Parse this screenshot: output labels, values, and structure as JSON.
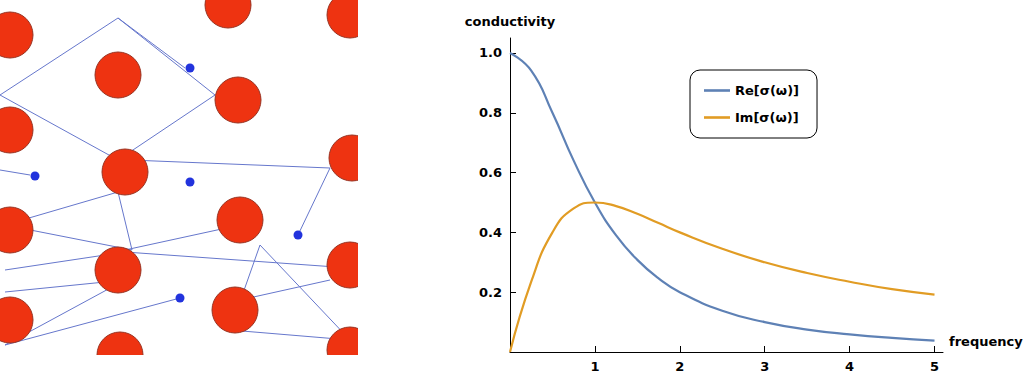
{
  "chart_data": {
    "type": "line",
    "xlabel": "frequency",
    "ylabel": "conductivity",
    "x": [
      0,
      0.25,
      0.5,
      0.75,
      1,
      1.25,
      1.5,
      1.75,
      2,
      2.5,
      3,
      3.5,
      4,
      4.5,
      5
    ],
    "series": [
      {
        "name": "Re[σ(ω)]",
        "color": "#5e81b5",
        "values": [
          1,
          0.941,
          0.8,
          0.64,
          0.5,
          0.39,
          0.308,
          0.246,
          0.2,
          0.138,
          0.1,
          0.075,
          0.059,
          0.047,
          0.038
        ]
      },
      {
        "name": "Im[σ(ω)]",
        "color": "#e19c24",
        "values": [
          0,
          0.235,
          0.4,
          0.48,
          0.5,
          0.488,
          0.462,
          0.431,
          0.4,
          0.345,
          0.3,
          0.264,
          0.235,
          0.21,
          0.192
        ]
      }
    ],
    "xlim": [
      0,
      5.1
    ],
    "xticks": [
      1,
      2,
      3,
      4,
      5
    ],
    "ylim": [
      0,
      1.05
    ],
    "yticks": [
      0.2,
      0.4,
      0.6,
      0.8,
      {
        "value": 1,
        "label": "1.0"
      }
    ],
    "grid": false,
    "legend": "top-right"
  }
}
